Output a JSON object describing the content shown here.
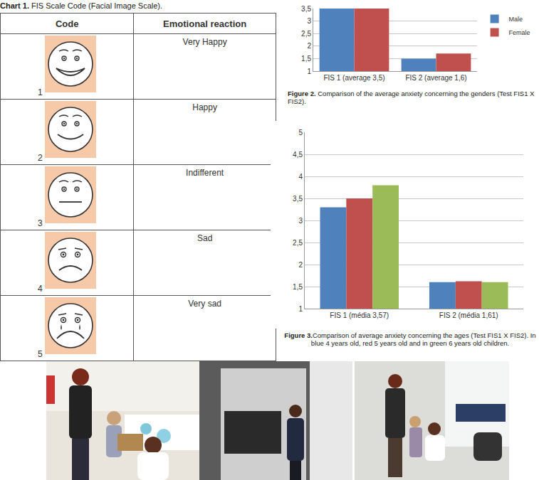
{
  "table": {
    "caption": "Chart 1. FIS Scale Code (Facial Image Scale).",
    "header": [
      "Code",
      "Emotional reaction"
    ],
    "rows": [
      {
        "code": 1,
        "reaction": "Very Happy"
      },
      {
        "code": 2,
        "reaction": "Happy"
      },
      {
        "code": 3,
        "reaction": "Indifferent"
      },
      {
        "code": 4,
        "reaction": "Sad"
      },
      {
        "code": 5,
        "reaction": "Very sad"
      }
    ]
  },
  "chart_data": [
    {
      "type": "bar",
      "caption": "Figure 2. Comparison of the average anxiety concerning the genders (Test FIS1 X FIS2).",
      "categories": [
        "FIS 1 (average 3,5)",
        "FIS 2 (average 1,6)"
      ],
      "series": [
        {
          "name": "Male",
          "color": "#4F81BD",
          "values": [
            3.5,
            1.5
          ]
        },
        {
          "name": "Female",
          "color": "#C0504D",
          "values": [
            3.5,
            1.7
          ]
        }
      ],
      "ylim": [
        1,
        3.5
      ],
      "yticks": [
        1,
        {
          "value": 1.5,
          "label": "1,5"
        },
        2,
        {
          "value": 2.5,
          "label": "2,5"
        },
        3,
        {
          "value": 3.5,
          "label": "3,5"
        }
      ],
      "grid": true,
      "legend": "right"
    },
    {
      "type": "bar",
      "caption": "Figure 3.Comparison of average anxiety concerning the ages (Test FIS1 X FIS2). In blue 4 years old, red 5 years old and in green 6 years old children.",
      "categories": [
        "FIS 1 (média 3,57)",
        "FIS 2 (média 1,61)"
      ],
      "series": [
        {
          "color": "#4F81BD",
          "values": [
            3.3,
            1.6
          ]
        },
        {
          "color": "#C0504D",
          "values": [
            3.5,
            1.62
          ]
        },
        {
          "color": "#9BBB59",
          "values": [
            3.8,
            1.6
          ]
        }
      ],
      "ylim": [
        1,
        5
      ],
      "yticks": [
        1,
        {
          "value": 1.5,
          "label": "1,5"
        },
        2,
        {
          "value": 2.5,
          "label": "2,5"
        },
        3,
        {
          "value": 3.5,
          "label": "3,5"
        },
        4,
        {
          "value": 4.5,
          "label": "4,5"
        },
        5
      ],
      "grid": true
    }
  ]
}
